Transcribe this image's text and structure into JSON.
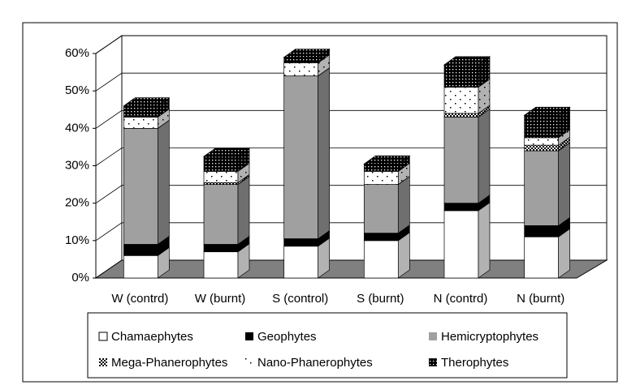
{
  "chart_data": {
    "type": "bar3d-stacked",
    "categories": [
      "W (contrd)",
      "W (burnt)",
      "S (control)",
      "S (burnt)",
      "N (contrd)",
      "N (burnt)"
    ],
    "series": [
      {
        "name": "Chamaephytes",
        "color": "#ffffff",
        "pattern": "solid",
        "values": [
          6,
          7,
          8.5,
          10,
          18,
          11
        ]
      },
      {
        "name": "Geophytes",
        "color": "#000000",
        "pattern": "solid",
        "values": [
          3,
          2,
          2,
          2,
          2,
          3
        ]
      },
      {
        "name": "Hemicryptophytes",
        "color": "#a0a0a0",
        "pattern": "solid",
        "values": [
          31,
          16,
          43.5,
          13,
          23,
          20
        ]
      },
      {
        "name": "Mega-Phanerophytes",
        "color": "#000000",
        "pattern": "checker",
        "values": [
          0,
          0.5,
          0,
          0,
          1,
          1.5
        ]
      },
      {
        "name": "Nano-Phanerophytes",
        "color": "#000000",
        "pattern": "sparse-dots",
        "values": [
          3,
          3,
          3.5,
          3.5,
          7,
          2
        ]
      },
      {
        "name": "Therophytes",
        "color": "#000000",
        "pattern": "dense-dots",
        "values": [
          3,
          4,
          1.5,
          2,
          6,
          6
        ]
      }
    ],
    "ylim": [
      0,
      60
    ],
    "yticks": [
      {
        "value": 0,
        "label": "0%"
      },
      {
        "value": 10,
        "label": "10%"
      },
      {
        "value": 20,
        "label": "20%"
      },
      {
        "value": 30,
        "label": "30%"
      },
      {
        "value": 40,
        "label": "40%"
      },
      {
        "value": 50,
        "label": "50%"
      },
      {
        "value": 60,
        "label": "60%"
      }
    ],
    "grid": true,
    "legend": "bottom"
  }
}
